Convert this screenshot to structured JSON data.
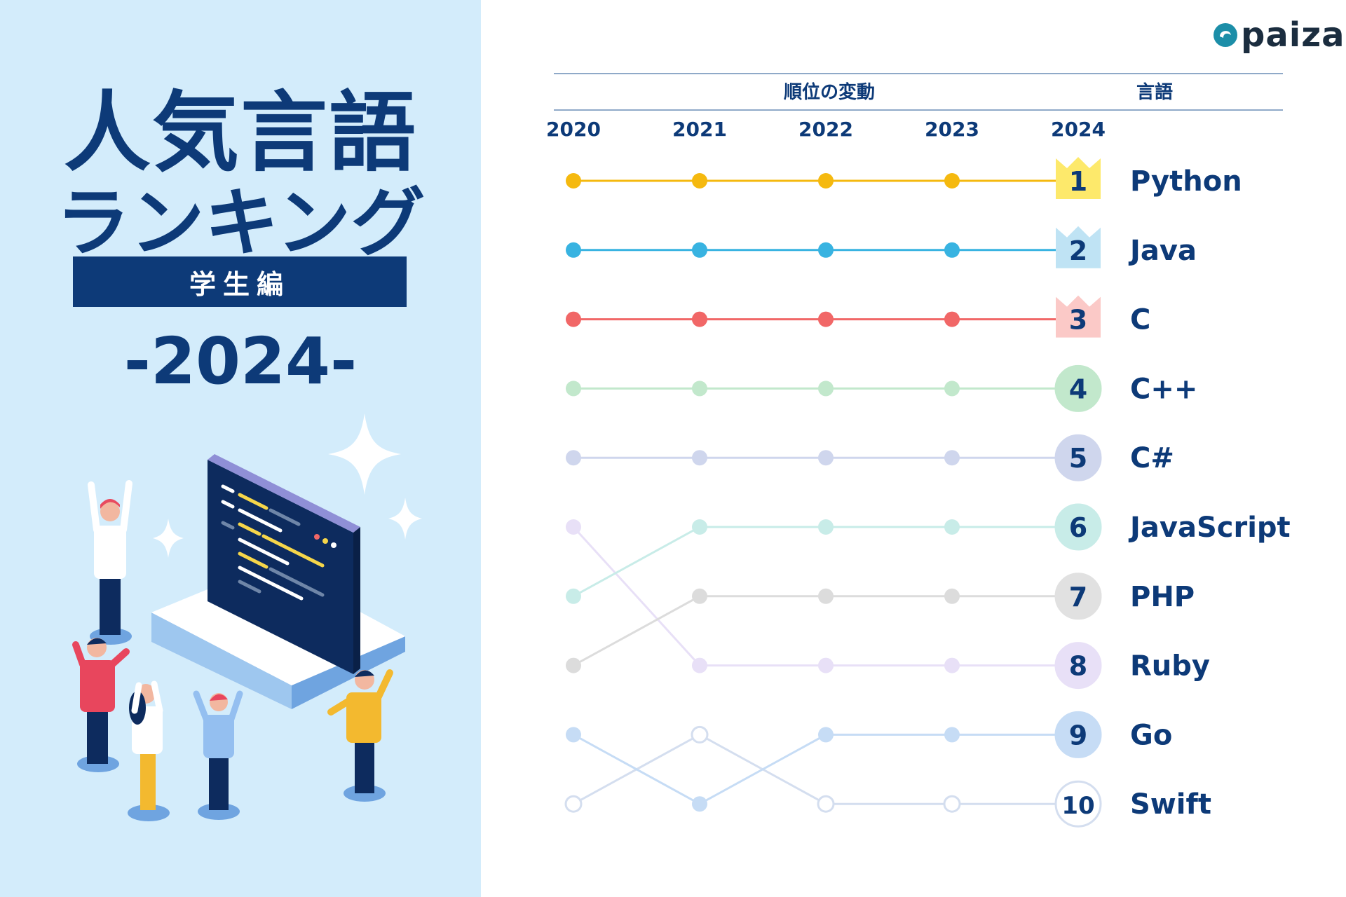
{
  "left": {
    "title_line1": "人気言語",
    "title_line2": "ランキング",
    "subtitle": "学生編",
    "year_banner": "-2024-"
  },
  "logo": {
    "text": "paiza",
    "icon": "paiza-logo-icon"
  },
  "chart_data": {
    "type": "line",
    "header_change": "順位の変動",
    "header_language": "言語",
    "x": [
      "2020",
      "2021",
      "2022",
      "2023",
      "2024"
    ],
    "y_reversed": true,
    "ylim": [
      1,
      10
    ],
    "series": [
      {
        "name": "Python",
        "rank2024": "1",
        "values": [
          1,
          1,
          1,
          1,
          1
        ],
        "color": "#f5b90f",
        "badge_bg": "#fde96b",
        "badge_shape": "crown",
        "hollow": []
      },
      {
        "name": "Java",
        "rank2024": "2",
        "values": [
          2,
          2,
          2,
          2,
          2
        ],
        "color": "#38b3e1",
        "badge_bg": "#bfe3f4",
        "badge_shape": "crown",
        "hollow": []
      },
      {
        "name": "C",
        "rank2024": "3",
        "values": [
          3,
          3,
          3,
          3,
          3
        ],
        "color": "#f16767",
        "badge_bg": "#fbc9c7",
        "badge_shape": "crown",
        "hollow": []
      },
      {
        "name": "C++",
        "rank2024": "4",
        "values": [
          4,
          4,
          4,
          4,
          4
        ],
        "color": "#c2e8cc",
        "badge_bg": "#c2e8cc",
        "badge_shape": "circle",
        "hollow": []
      },
      {
        "name": "C#",
        "rank2024": "5",
        "values": [
          5,
          5,
          5,
          5,
          5
        ],
        "color": "#cfd6ed",
        "badge_bg": "#cfd6ed",
        "badge_shape": "circle",
        "hollow": []
      },
      {
        "name": "JavaScript",
        "rank2024": "6",
        "values": [
          7,
          6,
          6,
          6,
          6
        ],
        "color": "#c8ece8",
        "badge_bg": "#c8ece8",
        "badge_shape": "circle",
        "hollow": []
      },
      {
        "name": "PHP",
        "rank2024": "7",
        "values": [
          8,
          7,
          7,
          7,
          7
        ],
        "color": "#dcdcdc",
        "badge_bg": "#e1e1e1",
        "badge_shape": "circle",
        "hollow": []
      },
      {
        "name": "Ruby",
        "rank2024": "8",
        "values": [
          6,
          8,
          8,
          8,
          8
        ],
        "color": "#e8e0f7",
        "badge_bg": "#e8e0f7",
        "badge_shape": "circle",
        "hollow": []
      },
      {
        "name": "Go",
        "rank2024": "9",
        "values": [
          9,
          10,
          9,
          9,
          9
        ],
        "color": "#c6dcf5",
        "badge_bg": "#c6dcf5",
        "badge_shape": "circle",
        "hollow": []
      },
      {
        "name": "Swift",
        "rank2024": "10",
        "values": [
          10,
          9,
          10,
          10,
          10
        ],
        "color": "#d4deef",
        "badge_bg": "#ffffff",
        "badge_shape": "circle",
        "hollow": [
          0,
          1,
          2,
          3
        ]
      }
    ]
  }
}
